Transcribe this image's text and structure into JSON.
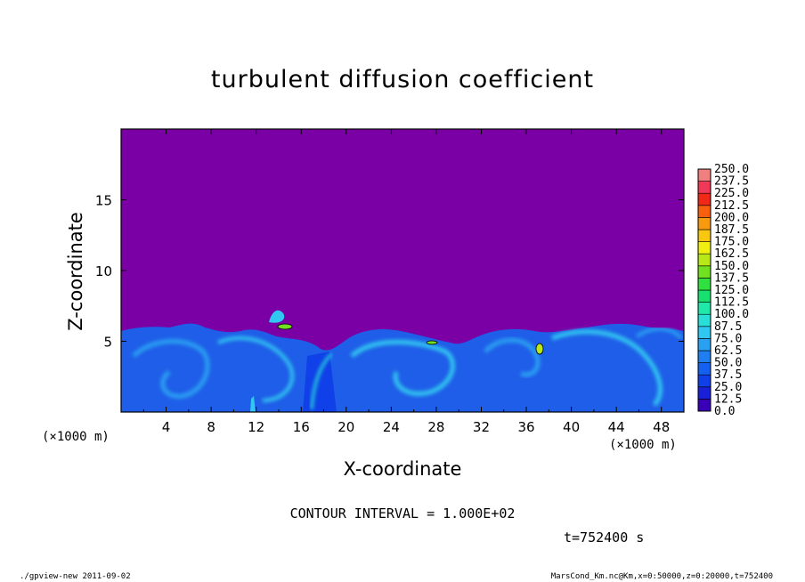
{
  "chart_data": {
    "type": "heatmap",
    "title": "turbulent diffusion coefficient",
    "xlabel": "X-coordinate",
    "ylabel": "Z-coordinate",
    "x_unit_label": "(×1000 m)",
    "y_unit_label": "(×1000 m)",
    "xlim": [
      0,
      50
    ],
    "ylim": [
      0,
      20
    ],
    "x_ticks": [
      "4",
      "8",
      "12",
      "16",
      "20",
      "24",
      "28",
      "32",
      "36",
      "40",
      "44",
      "48"
    ],
    "y_ticks": [
      "5",
      "10",
      "15"
    ],
    "colorbar_levels": [
      "0.0",
      "12.5",
      "25.0",
      "37.5",
      "50.0",
      "62.5",
      "75.0",
      "87.5",
      "100.0",
      "112.5",
      "125.0",
      "137.5",
      "150.0",
      "162.5",
      "175.0",
      "187.5",
      "200.0",
      "212.5",
      "225.0",
      "237.5",
      "250.0"
    ],
    "colorbar_colors": [
      "#7a00a6",
      "#3a00b8",
      "#1a20d8",
      "#1040e8",
      "#1460f0",
      "#1f7ef0",
      "#2aa0f2",
      "#30c8f0",
      "#28e0d8",
      "#20e8a8",
      "#18e070",
      "#30e040",
      "#70e020",
      "#b8e818",
      "#f0f010",
      "#f8c810",
      "#f89a10",
      "#f86010",
      "#f02818",
      "#f03858",
      "#f08080"
    ],
    "contour_interval": "CONTOUR INTERVAL = 1.000E+02",
    "time": "t=752400 s",
    "background_level": "0.0",
    "notes": ""
  },
  "footer": {
    "left": "./gpview-new  2011-09-02",
    "right": "MarsCond_Km.nc@Km,x=0:50000,z=0:20000,t=752400"
  }
}
